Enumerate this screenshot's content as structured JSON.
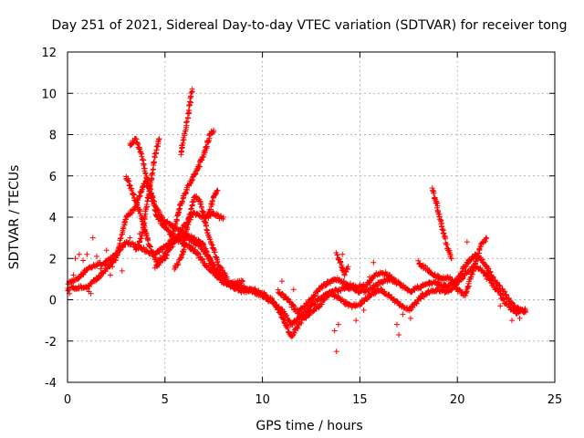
{
  "chart_data": {
    "type": "scatter",
    "title": "Day 251 of 2021, Sidereal Day-to-day VTEC variation (SDTVAR) for receiver tong",
    "xlabel": "GPS time / hours",
    "ylabel": "SDTVAR / TECUs",
    "xlim": [
      0,
      25
    ],
    "ylim": [
      -4,
      12
    ],
    "xticks": [
      0,
      5,
      10,
      15,
      20,
      25
    ],
    "yticks": [
      -4,
      -2,
      0,
      2,
      4,
      6,
      8,
      10,
      12
    ],
    "grid": true,
    "marker": "+",
    "series_color": "#ff0000",
    "series": [
      {
        "name": "SDTVAR",
        "tracks": [
          [
            [
              0.0,
              0.8
            ],
            [
              0.5,
              1.0
            ],
            [
              1.0,
              1.5
            ],
            [
              1.5,
              1.7
            ],
            [
              2.0,
              1.8
            ],
            [
              2.5,
              2.2
            ],
            [
              3.0,
              2.8
            ],
            [
              3.5,
              2.6
            ],
            [
              4.0,
              2.4
            ],
            [
              4.5,
              2.2
            ],
            [
              5.0,
              2.6
            ],
            [
              5.5,
              2.9
            ],
            [
              6.0,
              3.1
            ],
            [
              6.5,
              2.8
            ],
            [
              7.0,
              2.4
            ],
            [
              7.5,
              1.6
            ],
            [
              8.0,
              1.0
            ],
            [
              8.5,
              0.6
            ],
            [
              9.0,
              0.4
            ],
            [
              9.5,
              0.5
            ],
            [
              10.0,
              0.3
            ],
            [
              10.5,
              0.0
            ],
            [
              11.0,
              -0.8
            ],
            [
              11.5,
              -1.8
            ],
            [
              12.0,
              -1.0
            ],
            [
              12.5,
              -0.6
            ],
            [
              13.0,
              -0.2
            ],
            [
              13.5,
              0.4
            ],
            [
              14.0,
              0.5
            ],
            [
              14.5,
              0.6
            ],
            [
              15.0,
              0.4
            ],
            [
              15.5,
              0.5
            ],
            [
              16.0,
              0.8
            ],
            [
              16.5,
              1.0
            ],
            [
              17.0,
              0.8
            ],
            [
              17.5,
              0.4
            ],
            [
              18.0,
              0.6
            ],
            [
              18.5,
              0.8
            ],
            [
              19.0,
              0.8
            ],
            [
              19.5,
              0.6
            ],
            [
              20.0,
              1.0
            ],
            [
              20.5,
              1.8
            ],
            [
              21.0,
              2.2
            ],
            [
              21.5,
              1.6
            ],
            [
              22.0,
              0.8
            ],
            [
              22.5,
              0.2
            ],
            [
              23.0,
              -0.4
            ],
            [
              23.5,
              -0.6
            ]
          ],
          [
            [
              0.0,
              0.5
            ],
            [
              0.5,
              0.6
            ],
            [
              1.0,
              0.6
            ],
            [
              1.5,
              1.0
            ],
            [
              2.0,
              1.5
            ],
            [
              2.5,
              2.0
            ],
            [
              3.0,
              4.0
            ],
            [
              3.5,
              4.5
            ],
            [
              4.0,
              5.8
            ],
            [
              4.3,
              5.0
            ],
            [
              4.6,
              4.0
            ],
            [
              5.0,
              3.5
            ],
            [
              5.5,
              3.0
            ],
            [
              6.0,
              2.7
            ],
            [
              6.5,
              2.4
            ],
            [
              7.0,
              1.8
            ],
            [
              7.5,
              1.3
            ],
            [
              8.0,
              0.9
            ],
            [
              8.5,
              0.7
            ],
            [
              9.0,
              0.6
            ],
            [
              9.5,
              0.4
            ],
            [
              10.0,
              0.2
            ],
            [
              10.5,
              -0.1
            ],
            [
              11.0,
              -0.5
            ],
            [
              11.5,
              -1.2
            ],
            [
              12.0,
              -0.8
            ],
            [
              12.5,
              -0.3
            ],
            [
              13.0,
              0.1
            ],
            [
              13.5,
              0.3
            ],
            [
              14.0,
              0.0
            ],
            [
              14.5,
              -0.3
            ],
            [
              15.0,
              -0.2
            ],
            [
              15.5,
              0.2
            ],
            [
              16.0,
              0.5
            ],
            [
              16.5,
              0.2
            ],
            [
              17.0,
              -0.2
            ],
            [
              17.5,
              -0.5
            ],
            [
              18.0,
              0.0
            ],
            [
              18.5,
              0.4
            ],
            [
              19.0,
              0.5
            ],
            [
              19.5,
              0.4
            ],
            [
              20.0,
              0.8
            ],
            [
              20.5,
              1.4
            ],
            [
              21.0,
              1.6
            ],
            [
              21.5,
              1.2
            ],
            [
              22.0,
              0.5
            ],
            [
              22.5,
              -0.2
            ],
            [
              23.0,
              -0.6
            ],
            [
              23.5,
              -0.5
            ]
          ],
          [
            [
              3.2,
              7.5
            ],
            [
              3.5,
              7.8
            ],
            [
              3.8,
              7.0
            ],
            [
              4.1,
              5.8
            ],
            [
              4.5,
              4.5
            ],
            [
              5.0,
              3.8
            ],
            [
              5.5,
              3.5
            ],
            [
              6.0,
              3.2
            ],
            [
              6.5,
              3.0
            ],
            [
              7.0,
              2.6
            ],
            [
              7.5,
              1.5
            ],
            [
              8.0,
              0.8
            ],
            [
              8.5,
              0.8
            ],
            [
              9.0,
              0.9
            ]
          ],
          [
            [
              3.0,
              6.0
            ],
            [
              3.4,
              5.0
            ],
            [
              3.8,
              4.0
            ],
            [
              4.2,
              2.6
            ],
            [
              4.6,
              1.8
            ],
            [
              5.0,
              2.2
            ],
            [
              5.5,
              2.8
            ],
            [
              6.0,
              3.6
            ],
            [
              6.5,
              4.2
            ],
            [
              7.0,
              4.0
            ],
            [
              7.5,
              4.2
            ],
            [
              7.8,
              4.0
            ],
            [
              8.0,
              4.0
            ]
          ],
          [
            [
              4.5,
              1.6
            ],
            [
              5.0,
              2.0
            ],
            [
              5.4,
              3.2
            ],
            [
              5.8,
              4.6
            ],
            [
              6.2,
              5.5
            ],
            [
              6.6,
              6.2
            ],
            [
              7.0,
              7.0
            ],
            [
              7.3,
              8.0
            ],
            [
              7.5,
              8.2
            ]
          ],
          [
            [
              3.5,
              2.4
            ],
            [
              3.8,
              3.0
            ],
            [
              4.0,
              4.2
            ],
            [
              4.3,
              5.8
            ],
            [
              4.5,
              7.0
            ],
            [
              4.7,
              7.8
            ]
          ],
          [
            [
              5.5,
              1.5
            ],
            [
              5.9,
              2.2
            ],
            [
              6.2,
              3.8
            ],
            [
              6.5,
              5.0
            ],
            [
              6.8,
              4.8
            ],
            [
              7.2,
              3.2
            ],
            [
              7.5,
              2.4
            ],
            [
              7.8,
              1.6
            ],
            [
              8.2,
              1.0
            ]
          ],
          [
            [
              5.8,
              7.0
            ],
            [
              6.0,
              8.0
            ],
            [
              6.2,
              9.0
            ],
            [
              6.4,
              10.2
            ]
          ],
          [
            [
              7.2,
              4.0
            ],
            [
              7.5,
              5.0
            ],
            [
              7.7,
              5.3
            ]
          ],
          [
            [
              10.8,
              0.4
            ],
            [
              11.3,
              0.0
            ],
            [
              11.8,
              -0.6
            ],
            [
              12.3,
              -0.2
            ],
            [
              12.8,
              0.4
            ],
            [
              13.3,
              0.8
            ],
            [
              13.8,
              1.0
            ],
            [
              14.3,
              0.8
            ],
            [
              14.8,
              0.6
            ],
            [
              15.3,
              0.7
            ],
            [
              15.8,
              1.2
            ],
            [
              16.3,
              1.3
            ],
            [
              16.8,
              0.9
            ]
          ],
          [
            [
              18.7,
              5.4
            ],
            [
              18.9,
              4.8
            ],
            [
              19.1,
              4.0
            ],
            [
              19.3,
              3.2
            ],
            [
              19.5,
              2.5
            ],
            [
              19.7,
              2.0
            ]
          ],
          [
            [
              18.0,
              1.8
            ],
            [
              18.4,
              1.5
            ],
            [
              18.8,
              1.2
            ],
            [
              19.2,
              1.0
            ],
            [
              19.6,
              1.1
            ],
            [
              20.0,
              0.5
            ],
            [
              20.4,
              0.2
            ],
            [
              20.8,
              1.4
            ],
            [
              21.2,
              2.6
            ],
            [
              21.5,
              3.0
            ]
          ],
          [
            [
              13.8,
              2.2
            ],
            [
              14.0,
              1.8
            ],
            [
              14.2,
              1.2
            ],
            [
              14.4,
              1.6
            ]
          ]
        ],
        "scattered_points": [
          [
            0.1,
            0.3
          ],
          [
            0.3,
            1.2
          ],
          [
            0.4,
            2.0
          ],
          [
            0.6,
            2.2
          ],
          [
            0.8,
            1.9
          ],
          [
            1.0,
            2.2
          ],
          [
            1.1,
            0.4
          ],
          [
            1.2,
            0.3
          ],
          [
            1.3,
            3.0
          ],
          [
            1.5,
            2.1
          ],
          [
            1.7,
            1.5
          ],
          [
            2.0,
            2.4
          ],
          [
            2.2,
            1.2
          ],
          [
            2.3,
            1.6
          ],
          [
            2.8,
            1.4
          ],
          [
            3.2,
            3.0
          ],
          [
            3.7,
            3.2
          ],
          [
            11.0,
            0.9
          ],
          [
            11.6,
            0.5
          ],
          [
            13.7,
            -1.5
          ],
          [
            13.8,
            -2.5
          ],
          [
            13.9,
            -1.2
          ],
          [
            14.1,
            2.2
          ],
          [
            14.3,
            1.5
          ],
          [
            14.8,
            -1.0
          ],
          [
            15.2,
            -0.5
          ],
          [
            15.5,
            1.1
          ],
          [
            15.7,
            1.8
          ],
          [
            16.1,
            0.5
          ],
          [
            16.9,
            -1.2
          ],
          [
            17.0,
            -1.7
          ],
          [
            17.2,
            -0.7
          ],
          [
            17.6,
            -0.9
          ],
          [
            18.2,
            0.3
          ],
          [
            20.5,
            2.8
          ],
          [
            21.5,
            1.0
          ],
          [
            22.2,
            -0.3
          ],
          [
            22.8,
            -1.0
          ],
          [
            23.2,
            -0.9
          ]
        ]
      }
    ]
  }
}
